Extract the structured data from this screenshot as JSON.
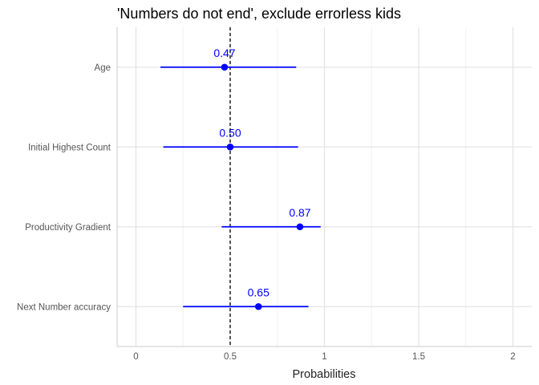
{
  "chart_data": {
    "type": "dot-interval",
    "title": "'Numbers do not end', exclude errorless kids",
    "xlabel": "Probabilities",
    "ylabel": "",
    "xlim": [
      -0.1,
      2.1
    ],
    "x_ticks": [
      0,
      0.5,
      1,
      1.5,
      2
    ],
    "x_tick_labels": [
      "0",
      "0.5",
      "1",
      "1.5",
      "2"
    ],
    "reference_line": {
      "x": 0.5,
      "style": "dashed"
    },
    "grid": true,
    "color": "#0000ff",
    "categories": [
      "Age",
      "Initial Highest Count",
      "Productivity Gradient",
      "Next Number accuracy"
    ],
    "points": [
      {
        "category": "Age",
        "estimate": 0.47,
        "label": "0.47",
        "lower": 0.13,
        "upper": 0.85
      },
      {
        "category": "Initial Highest Count",
        "estimate": 0.5,
        "label": "0.50",
        "lower": 0.145,
        "upper": 0.86
      },
      {
        "category": "Productivity Gradient",
        "estimate": 0.87,
        "label": "0.87",
        "lower": 0.455,
        "upper": 0.98
      },
      {
        "category": "Next Number accuracy",
        "estimate": 0.65,
        "label": "0.65",
        "lower": 0.25,
        "upper": 0.915
      }
    ]
  }
}
